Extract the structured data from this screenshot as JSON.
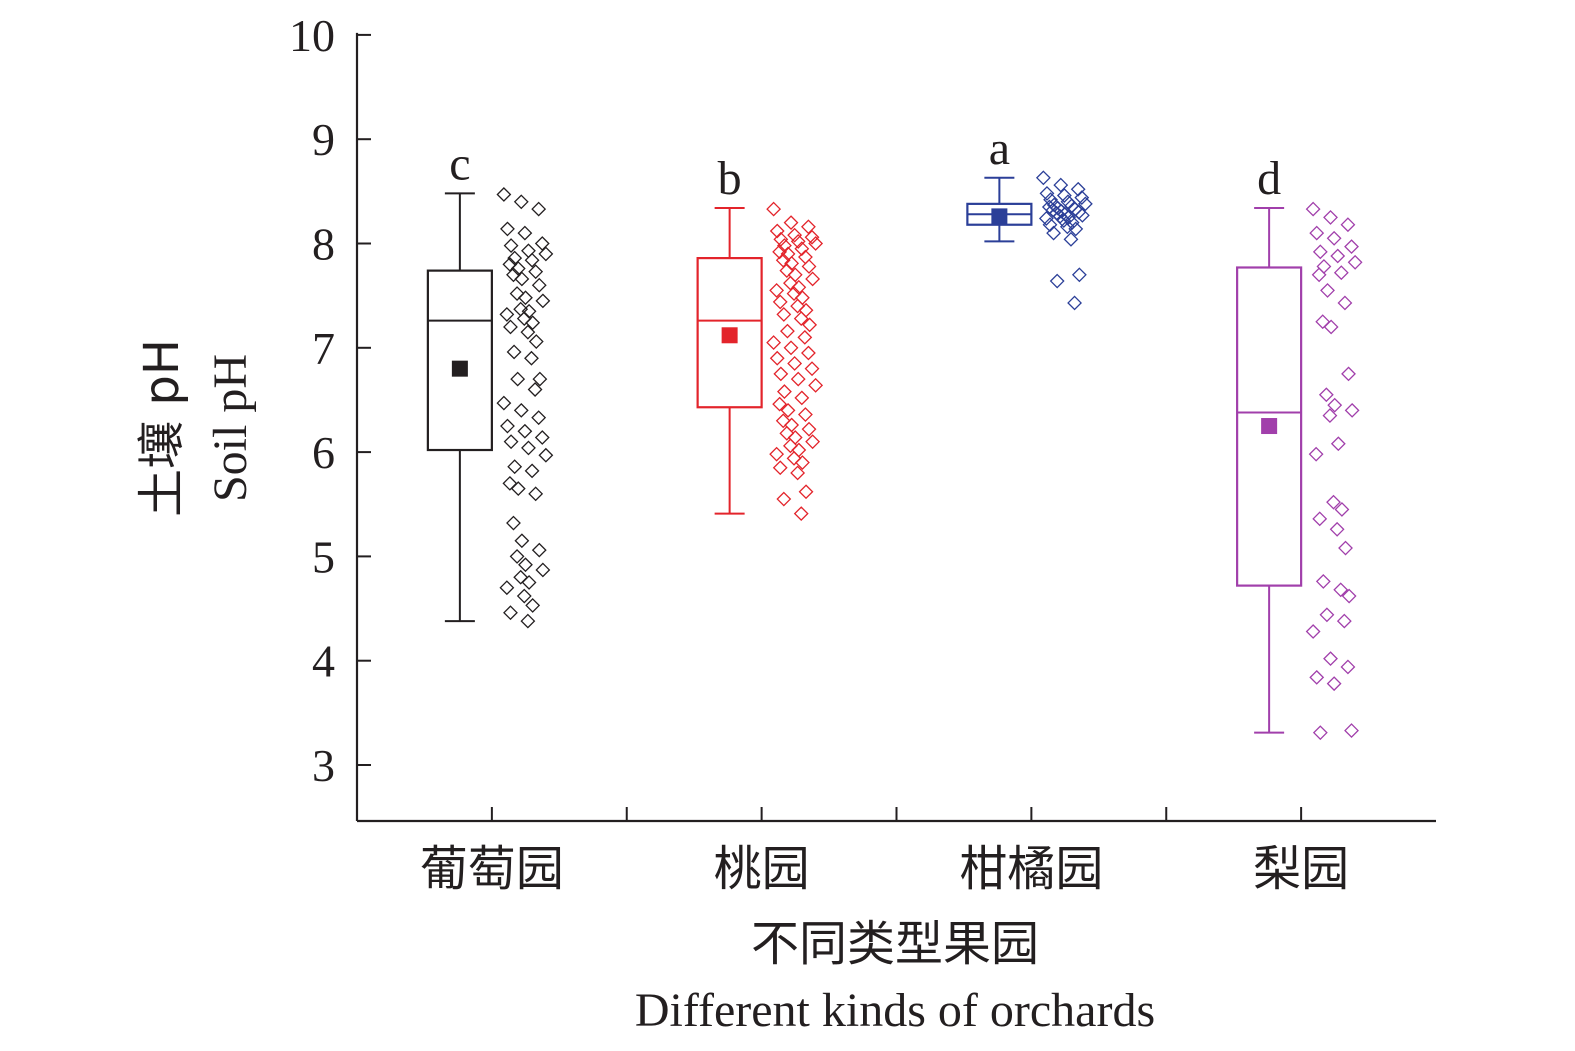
{
  "chart_data": {
    "type": "box",
    "ylabel_cn": "土壤 pH",
    "ylabel_en": "Soil pH",
    "xlabel_cn": "不同类型果园",
    "xlabel_en": "Different kinds of orchards",
    "ylim": [
      2.5,
      10
    ],
    "yticks": [
      3,
      4,
      5,
      6,
      7,
      8,
      9,
      10
    ],
    "grid": false,
    "categories": [
      "葡萄园",
      "桃园",
      "柑橘园",
      "梨园"
    ],
    "series": [
      {
        "category": "葡萄园",
        "letter": "c",
        "color": "#231f20",
        "whisker_low": 4.38,
        "q1": 6.02,
        "median": 7.26,
        "q3": 7.74,
        "whisker_high": 8.48,
        "mean": 6.8,
        "points": [
          8.47,
          8.4,
          8.33,
          8.14,
          8.1,
          8.0,
          7.98,
          7.93,
          7.9,
          7.86,
          7.84,
          7.8,
          7.76,
          7.73,
          7.7,
          7.66,
          7.6,
          7.52,
          7.48,
          7.45,
          7.37,
          7.35,
          7.32,
          7.28,
          7.24,
          7.2,
          7.15,
          7.06,
          6.96,
          6.9,
          6.7,
          6.7,
          6.6,
          6.47,
          6.4,
          6.33,
          6.25,
          6.2,
          6.14,
          6.1,
          6.04,
          5.97,
          5.86,
          5.82,
          5.7,
          5.65,
          5.6,
          5.32,
          5.15,
          5.06,
          5.0,
          4.92,
          4.87,
          4.8,
          4.75,
          4.7,
          4.62,
          4.53,
          4.46,
          4.38
        ]
      },
      {
        "category": "桃园",
        "letter": "b",
        "color": "#e3242b",
        "whisker_low": 5.41,
        "q1": 6.43,
        "median": 7.26,
        "q3": 7.86,
        "whisker_high": 8.34,
        "mean": 7.12,
        "points": [
          8.33,
          8.2,
          8.16,
          8.12,
          8.08,
          8.06,
          8.04,
          8.02,
          8.0,
          7.98,
          7.95,
          7.92,
          7.9,
          7.87,
          7.84,
          7.81,
          7.78,
          7.74,
          7.7,
          7.66,
          7.62,
          7.58,
          7.55,
          7.52,
          7.48,
          7.44,
          7.4,
          7.36,
          7.32,
          7.28,
          7.22,
          7.16,
          7.1,
          7.05,
          7.0,
          6.95,
          6.9,
          6.85,
          6.8,
          6.75,
          6.7,
          6.64,
          6.58,
          6.52,
          6.46,
          6.4,
          6.36,
          6.3,
          6.26,
          6.22,
          6.18,
          6.14,
          6.1,
          6.06,
          6.02,
          5.98,
          5.94,
          5.9,
          5.85,
          5.8,
          5.62,
          5.55,
          5.41
        ]
      },
      {
        "category": "柑橘园",
        "letter": "a",
        "color": "#2b3f98",
        "whisker_low": 8.02,
        "q1": 8.18,
        "median": 8.28,
        "q3": 8.38,
        "whisker_high": 8.63,
        "mean": 8.26,
        "points": [
          8.63,
          8.56,
          8.52,
          8.48,
          8.46,
          8.44,
          8.42,
          8.4,
          8.38,
          8.37,
          8.36,
          8.35,
          8.34,
          8.33,
          8.32,
          8.31,
          8.3,
          8.29,
          8.28,
          8.27,
          8.26,
          8.25,
          8.24,
          8.22,
          8.2,
          8.18,
          8.16,
          8.14,
          8.1,
          8.04,
          7.7,
          7.64,
          7.43
        ]
      },
      {
        "category": "梨园",
        "letter": "d",
        "color": "#a13fab",
        "whisker_low": 3.31,
        "q1": 4.72,
        "median": 6.38,
        "q3": 7.77,
        "whisker_high": 8.34,
        "mean": 6.25,
        "points": [
          8.33,
          8.25,
          8.18,
          8.1,
          8.05,
          7.97,
          7.92,
          7.88,
          7.82,
          7.78,
          7.72,
          7.7,
          7.55,
          7.43,
          7.25,
          7.2,
          6.75,
          6.55,
          6.45,
          6.4,
          6.35,
          6.08,
          5.98,
          5.52,
          5.45,
          5.36,
          5.26,
          5.08,
          4.76,
          4.68,
          4.62,
          4.44,
          4.38,
          4.28,
          4.02,
          3.94,
          3.84,
          3.78,
          3.33,
          3.31
        ]
      }
    ]
  }
}
